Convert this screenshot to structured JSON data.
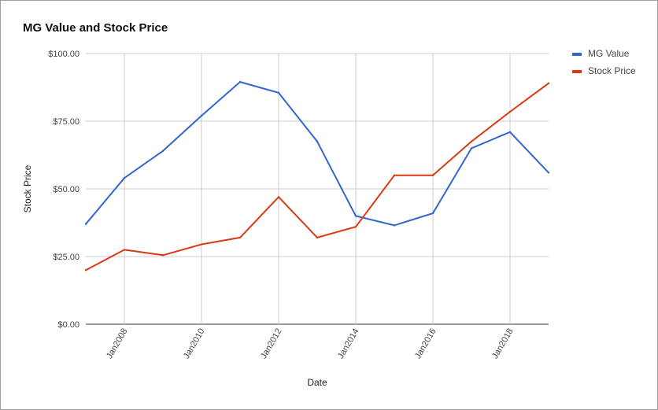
{
  "chart_data": {
    "type": "line",
    "title": "MG Value and Stock Price",
    "xlabel": "Date",
    "ylabel": "Stock Price",
    "x": [
      "2007-01",
      "2008-01",
      "2009-01",
      "2010-01",
      "2011-01",
      "2012-01",
      "2013-01",
      "2014-01",
      "2015-01",
      "2016-01",
      "2017-01",
      "2018-01",
      "2019-01"
    ],
    "x_tick_labels": [
      "Jan2008",
      "Jan2010",
      "Jan2012",
      "Jan2014",
      "Jan2016",
      "Jan2018"
    ],
    "x_range": [
      "2007-01",
      "2019-01"
    ],
    "y_ticks": [
      0,
      25,
      50,
      75,
      100
    ],
    "y_tick_labels": [
      "$0.00",
      "$25.00",
      "$50.00",
      "$75.00",
      "$100.00"
    ],
    "ylim": [
      0,
      100
    ],
    "grid": true,
    "legend_position": "right",
    "series": [
      {
        "name": "MG Value",
        "color": "#3366cc",
        "values": [
          37,
          54,
          64,
          77,
          89.5,
          85.5,
          67.5,
          40,
          36.5,
          41,
          65,
          71,
          56
        ]
      },
      {
        "name": "Stock Price",
        "color": "#dc3912",
        "values": [
          20,
          27.5,
          25.5,
          29.5,
          32,
          47,
          32,
          36,
          55,
          55,
          67.5,
          78.5,
          89
        ]
      }
    ]
  }
}
